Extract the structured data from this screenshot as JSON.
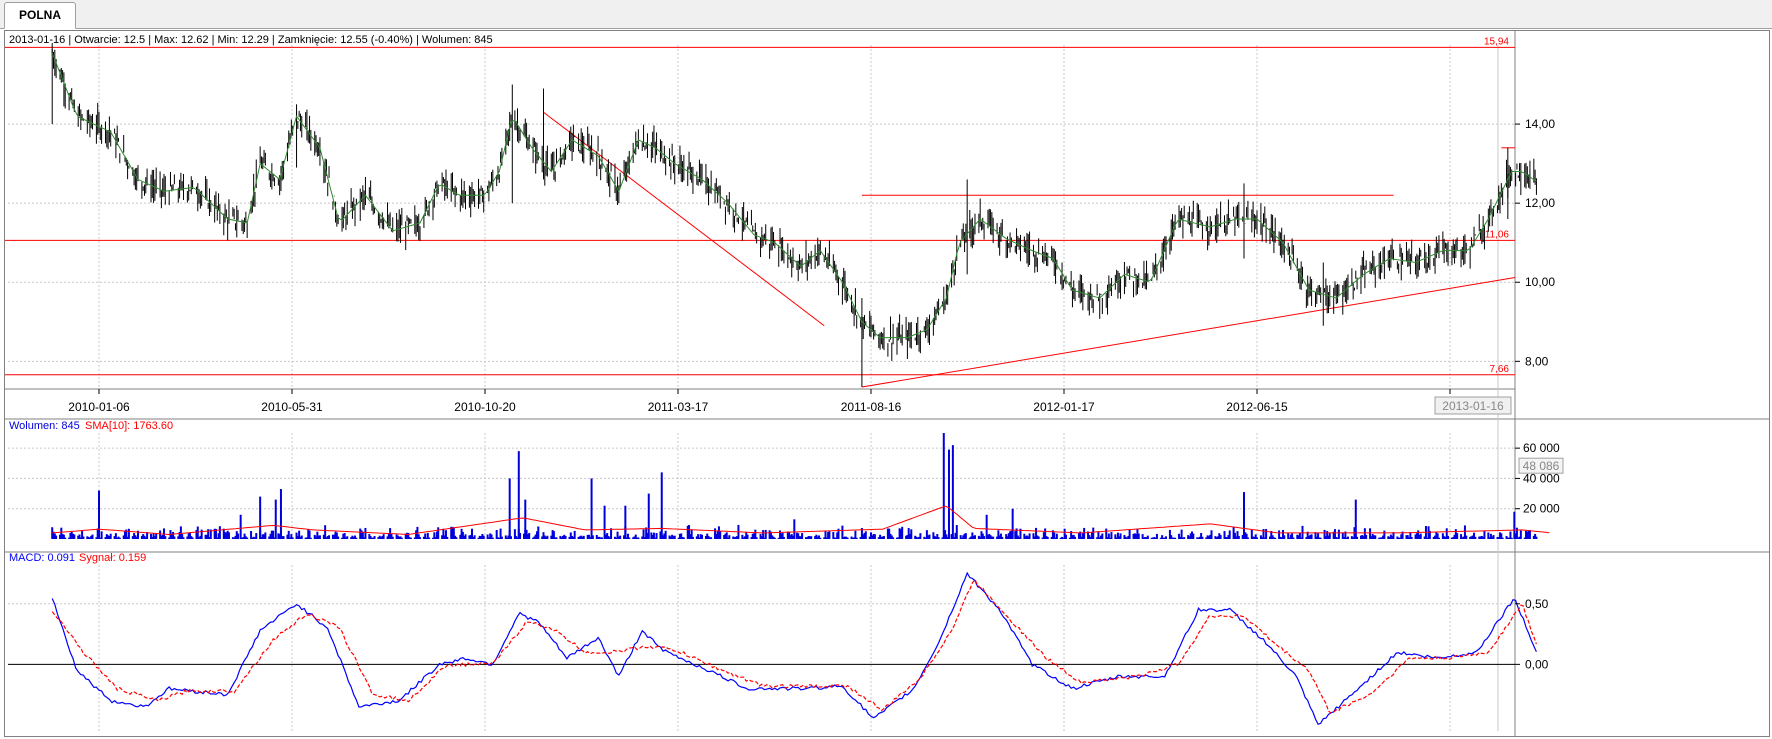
{
  "tab": {
    "label": "POLNA"
  },
  "info_line": "2013-01-16 | Otwarcie: 12.5 | Max: 12.62 | Min: 12.29 | Zamknięcie: 12.55 (-0.40%)  | Wolumen: 845",
  "volume_legend": {
    "volume": "Wolumen: 845",
    "sma": "SMA[10]: 1763.60"
  },
  "macd_legend": {
    "macd": "MACD: 0.091",
    "signal": "Sygnał: 0.159"
  },
  "colors": {
    "price": "#000000",
    "sma_price": "#2e8b2e",
    "lines": "#ff0000",
    "volume": "#0000dd",
    "volume_sma": "#ff0000",
    "macd": "#0000ff",
    "signal": "#ff0000",
    "grid": "#c8c8c8"
  },
  "chart_data": [
    {
      "type": "candlestick",
      "x_ticks": [
        "2010-01-06",
        "2010-05-31",
        "2010-10-20",
        "2011-03-17",
        "2011-08-16",
        "2012-01-17",
        "2012-06-15",
        "201"
      ],
      "cursor_date": "2013-01-16",
      "y_ticks": [
        "14,00",
        "12,00",
        "10,00",
        "8,00"
      ],
      "ylim": [
        7.3,
        16.0
      ],
      "hlines": [
        {
          "value": 15.94,
          "label": "15,94"
        },
        {
          "value": 11.06,
          "label": "11,06"
        },
        {
          "value": 7.66,
          "label": "7,66"
        }
      ],
      "trendlines": [
        {
          "from": [
            "2010-12-14",
            14.3
          ],
          "to": [
            "2011-07-18",
            8.9
          ]
        },
        {
          "from": [
            "2011-08-16",
            7.35
          ],
          "to": [
            "2013-01-28",
            10.12
          ]
        },
        {
          "from": [
            "2011-08-16",
            12.2
          ],
          "to": [
            "2012-09-28",
            12.2
          ]
        },
        {
          "from": [
            "2012-12-20",
            13.4
          ],
          "to": [
            "2013-01-28",
            13.4
          ]
        }
      ],
      "close_path": [
        [
          "2009-12-01",
          15.8
        ],
        [
          "2009-12-20",
          14.2
        ],
        [
          "2010-01-15",
          13.8
        ],
        [
          "2010-02-05",
          12.6
        ],
        [
          "2010-02-25",
          12.3
        ],
        [
          "2010-03-20",
          12.4
        ],
        [
          "2010-04-15",
          11.6
        ],
        [
          "2010-04-30",
          11.5
        ],
        [
          "2010-05-10",
          13.0
        ],
        [
          "2010-05-25",
          12.6
        ],
        [
          "2010-06-07",
          14.2
        ],
        [
          "2010-06-25",
          13.4
        ],
        [
          "2010-07-10",
          11.5
        ],
        [
          "2010-07-30",
          12.2
        ],
        [
          "2010-08-20",
          11.3
        ],
        [
          "2010-09-10",
          11.5
        ],
        [
          "2010-09-25",
          12.5
        ],
        [
          "2010-10-10",
          12.2
        ],
        [
          "2010-10-30",
          12.2
        ],
        [
          "2010-11-10",
          12.8
        ],
        [
          "2010-11-20",
          14.2
        ],
        [
          "2010-12-05",
          13.4
        ],
        [
          "2010-12-20",
          12.8
        ],
        [
          "2011-01-05",
          13.6
        ],
        [
          "2011-01-25",
          13.2
        ],
        [
          "2011-02-10",
          12.3
        ],
        [
          "2011-02-25",
          13.6
        ],
        [
          "2011-03-10",
          13.4
        ],
        [
          "2011-03-25",
          13.0
        ],
        [
          "2011-04-15",
          12.6
        ],
        [
          "2011-05-05",
          12.0
        ],
        [
          "2011-05-25",
          11.2
        ],
        [
          "2011-06-10",
          11.0
        ],
        [
          "2011-06-30",
          10.4
        ],
        [
          "2011-07-15",
          10.8
        ],
        [
          "2011-08-01",
          10.0
        ],
        [
          "2011-08-16",
          9.0
        ],
        [
          "2011-08-30",
          8.6
        ],
        [
          "2011-09-20",
          8.6
        ],
        [
          "2011-10-05",
          8.8
        ],
        [
          "2011-10-20",
          9.6
        ],
        [
          "2011-10-30",
          11.0
        ],
        [
          "2011-11-15",
          11.6
        ],
        [
          "2011-12-05",
          11.1
        ],
        [
          "2011-12-25",
          10.8
        ],
        [
          "2012-01-10",
          10.6
        ],
        [
          "2012-01-25",
          9.8
        ],
        [
          "2012-02-15",
          9.6
        ],
        [
          "2012-03-05",
          10.2
        ],
        [
          "2012-03-25",
          10.0
        ],
        [
          "2012-04-15",
          11.6
        ],
        [
          "2012-05-10",
          11.4
        ],
        [
          "2012-05-30",
          11.6
        ],
        [
          "2012-06-15",
          11.6
        ],
        [
          "2012-07-05",
          11.0
        ],
        [
          "2012-07-25",
          9.8
        ],
        [
          "2012-08-15",
          9.6
        ],
        [
          "2012-09-05",
          10.2
        ],
        [
          "2012-09-25",
          10.6
        ],
        [
          "2012-10-15",
          10.5
        ],
        [
          "2012-11-05",
          10.8
        ],
        [
          "2012-11-25",
          10.8
        ],
        [
          "2012-12-10",
          11.6
        ],
        [
          "2012-12-28",
          12.8
        ],
        [
          "2013-01-05",
          12.8
        ],
        [
          "2013-01-16",
          12.55
        ]
      ],
      "spikes": [
        {
          "date": "2009-12-01",
          "high": 15.9,
          "low": 14.0
        },
        {
          "date": "2010-06-07",
          "high": 14.5,
          "low": 12.9
        },
        {
          "date": "2010-11-20",
          "high": 15.0,
          "low": 12.0
        },
        {
          "date": "2010-12-14",
          "high": 14.9,
          "low": 12.6
        },
        {
          "date": "2011-08-16",
          "high": 9.6,
          "low": 7.35
        },
        {
          "date": "2011-11-05",
          "high": 12.6,
          "low": 10.2
        },
        {
          "date": "2012-06-05",
          "high": 12.5,
          "low": 10.6
        },
        {
          "date": "2012-08-05",
          "high": 10.5,
          "low": 8.9
        },
        {
          "date": "2012-12-25",
          "high": 13.4,
          "low": 11.6
        }
      ]
    },
    {
      "type": "bar",
      "title": "Wolumen",
      "y_ticks": [
        "60 000",
        "40 000",
        "20 000"
      ],
      "ylim": [
        0,
        70000
      ],
      "value_label": "48 086",
      "spikes": [
        [
          "2010-01-06",
          32000
        ],
        [
          "2010-04-25",
          16000
        ],
        [
          "2010-05-10",
          28000
        ],
        [
          "2010-05-22",
          26000
        ],
        [
          "2010-05-26",
          33000
        ],
        [
          "2010-11-18",
          40000
        ],
        [
          "2010-11-25",
          58000
        ],
        [
          "2010-11-30",
          26000
        ],
        [
          "2011-01-20",
          40000
        ],
        [
          "2011-01-30",
          22000
        ],
        [
          "2011-02-15",
          22000
        ],
        [
          "2011-03-05",
          30000
        ],
        [
          "2011-03-15",
          44000
        ],
        [
          "2011-06-25",
          13000
        ],
        [
          "2011-10-18",
          70000
        ],
        [
          "2011-10-22",
          59000
        ],
        [
          "2011-10-25",
          62000
        ],
        [
          "2011-11-20",
          16000
        ],
        [
          "2011-12-10",
          20000
        ],
        [
          "2012-06-05",
          31000
        ],
        [
          "2012-08-30",
          26000
        ],
        [
          "2012-12-30",
          18000
        ]
      ],
      "sma_path": [
        [
          "2009-12-01",
          4000
        ],
        [
          "2010-01-06",
          6500
        ],
        [
          "2010-03-01",
          3000
        ],
        [
          "2010-05-20",
          9000
        ],
        [
          "2010-06-20",
          6000
        ],
        [
          "2010-09-01",
          3000
        ],
        [
          "2010-11-28",
          14000
        ],
        [
          "2011-01-15",
          6000
        ],
        [
          "2011-03-15",
          7000
        ],
        [
          "2011-06-01",
          4000
        ],
        [
          "2011-09-01",
          6500
        ],
        [
          "2011-10-20",
          22000
        ],
        [
          "2011-11-10",
          7000
        ],
        [
          "2012-02-01",
          4000
        ],
        [
          "2012-05-10",
          10000
        ],
        [
          "2012-07-01",
          4000
        ],
        [
          "2012-10-01",
          4000
        ],
        [
          "2013-01-05",
          6000
        ],
        [
          "2013-01-28",
          4000
        ]
      ]
    },
    {
      "type": "line",
      "title": "MACD",
      "y_ticks": [
        "0,50",
        "0,00"
      ],
      "ylim": [
        -0.55,
        0.82
      ],
      "series": [
        {
          "name": "MACD",
          "values": [
            [
              "2009-12-01",
              0.55
            ],
            [
              "2009-12-20",
              -0.05
            ],
            [
              "2010-01-15",
              -0.3
            ],
            [
              "2010-02-10",
              -0.35
            ],
            [
              "2010-03-01",
              -0.2
            ],
            [
              "2010-04-15",
              -0.25
            ],
            [
              "2010-05-10",
              0.28
            ],
            [
              "2010-06-07",
              0.5
            ],
            [
              "2010-07-01",
              0.3
            ],
            [
              "2010-07-25",
              -0.35
            ],
            [
              "2010-08-25",
              -0.3
            ],
            [
              "2010-09-25",
              0.0
            ],
            [
              "2010-10-15",
              0.05
            ],
            [
              "2010-11-05",
              0.0
            ],
            [
              "2010-11-25",
              0.42
            ],
            [
              "2010-12-10",
              0.35
            ],
            [
              "2011-01-01",
              0.05
            ],
            [
              "2011-01-25",
              0.22
            ],
            [
              "2011-02-10",
              -0.1
            ],
            [
              "2011-02-28",
              0.28
            ],
            [
              "2011-03-15",
              0.12
            ],
            [
              "2011-04-20",
              -0.05
            ],
            [
              "2011-05-20",
              -0.2
            ],
            [
              "2011-07-01",
              -0.2
            ],
            [
              "2011-08-01",
              -0.18
            ],
            [
              "2011-08-25",
              -0.45
            ],
            [
              "2011-09-25",
              -0.2
            ],
            [
              "2011-10-15",
              0.2
            ],
            [
              "2011-11-05",
              0.75
            ],
            [
              "2011-11-30",
              0.45
            ],
            [
              "2011-12-25",
              0.0
            ],
            [
              "2012-01-25",
              -0.2
            ],
            [
              "2012-03-01",
              -0.1
            ],
            [
              "2012-04-05",
              -0.1
            ],
            [
              "2012-05-01",
              0.45
            ],
            [
              "2012-05-25",
              0.45
            ],
            [
              "2012-06-20",
              0.2
            ],
            [
              "2012-07-15",
              -0.1
            ],
            [
              "2012-08-01",
              -0.5
            ],
            [
              "2012-09-01",
              -0.2
            ],
            [
              "2012-10-01",
              0.1
            ],
            [
              "2012-11-01",
              0.05
            ],
            [
              "2012-12-01",
              0.1
            ],
            [
              "2012-12-30",
              0.55
            ],
            [
              "2013-01-16",
              0.1
            ]
          ]
        },
        {
          "name": "Sygnał",
          "values": [
            [
              "2009-12-01",
              0.45
            ],
            [
              "2009-12-25",
              0.1
            ],
            [
              "2010-01-20",
              -0.2
            ],
            [
              "2010-02-20",
              -0.3
            ],
            [
              "2010-03-15",
              -0.22
            ],
            [
              "2010-04-20",
              -0.22
            ],
            [
              "2010-05-20",
              0.2
            ],
            [
              "2010-06-15",
              0.42
            ],
            [
              "2010-07-10",
              0.3
            ],
            [
              "2010-08-05",
              -0.25
            ],
            [
              "2010-09-01",
              -0.3
            ],
            [
              "2010-10-01",
              0.0
            ],
            [
              "2010-11-05",
              0.0
            ],
            [
              "2010-12-01",
              0.35
            ],
            [
              "2010-12-20",
              0.3
            ],
            [
              "2011-01-15",
              0.1
            ],
            [
              "2011-02-05",
              0.1
            ],
            [
              "2011-03-05",
              0.15
            ],
            [
              "2011-03-25",
              0.12
            ],
            [
              "2011-05-01",
              -0.05
            ],
            [
              "2011-06-01",
              -0.18
            ],
            [
              "2011-08-05",
              -0.18
            ],
            [
              "2011-09-01",
              -0.38
            ],
            [
              "2011-10-01",
              -0.1
            ],
            [
              "2011-10-25",
              0.3
            ],
            [
              "2011-11-10",
              0.7
            ],
            [
              "2011-12-10",
              0.35
            ],
            [
              "2012-01-05",
              0.05
            ],
            [
              "2012-02-01",
              -0.15
            ],
            [
              "2012-03-15",
              -0.1
            ],
            [
              "2012-04-15",
              0.0
            ],
            [
              "2012-05-10",
              0.4
            ],
            [
              "2012-06-05",
              0.4
            ],
            [
              "2012-07-01",
              0.15
            ],
            [
              "2012-07-25",
              -0.05
            ],
            [
              "2012-08-10",
              -0.4
            ],
            [
              "2012-09-10",
              -0.25
            ],
            [
              "2012-10-10",
              0.05
            ],
            [
              "2012-11-10",
              0.05
            ],
            [
              "2012-12-10",
              0.1
            ],
            [
              "2013-01-05",
              0.5
            ],
            [
              "2013-01-16",
              0.16
            ]
          ]
        }
      ]
    }
  ]
}
